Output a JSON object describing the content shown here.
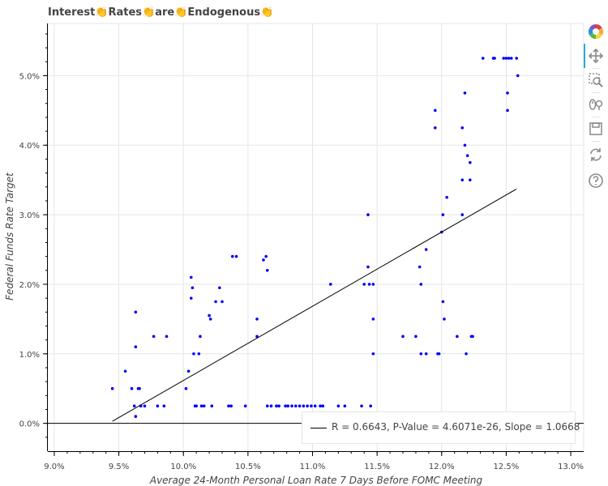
{
  "title": "Interest👏Rates👏are👏Endogenous👏",
  "toolbar": {
    "tools": [
      {
        "name": "bokeh-logo-icon"
      },
      {
        "name": "pan-tool-icon"
      },
      {
        "name": "box-zoom-tool-icon"
      },
      {
        "name": "wheel-zoom-tool-icon"
      },
      {
        "name": "save-tool-icon"
      },
      {
        "name": "reset-tool-icon"
      },
      {
        "name": "help-tool-icon"
      }
    ],
    "accent": "#26aae1"
  },
  "chart_data": {
    "type": "scatter",
    "xlabel": "Average 24-Month Personal Loan Rate 7 Days Before FOMC Meeting",
    "ylabel": "Federal Funds Rate Target",
    "xlim": [
      8.95,
      13.1
    ],
    "ylim": [
      -0.4,
      5.75
    ],
    "x_ticks": [
      "9.0%",
      "9.5%",
      "10.0%",
      "10.5%",
      "11.0%",
      "11.5%",
      "12.0%",
      "12.5%",
      "13.0%"
    ],
    "x_tick_values": [
      9.0,
      9.5,
      10.0,
      10.5,
      11.0,
      11.5,
      12.0,
      12.5,
      13.0
    ],
    "y_ticks": [
      "0.0%",
      "1.0%",
      "2.0%",
      "3.0%",
      "4.0%",
      "5.0%"
    ],
    "y_tick_values": [
      0,
      1,
      2,
      3,
      4,
      5
    ],
    "point_color": "#0000ff",
    "points": [
      [
        9.45,
        0.5
      ],
      [
        9.55,
        0.75
      ],
      [
        9.6,
        0.5
      ],
      [
        9.63,
        1.6
      ],
      [
        9.63,
        1.1
      ],
      [
        9.63,
        0.1
      ],
      [
        9.62,
        0.25
      ],
      [
        9.65,
        0.5
      ],
      [
        9.66,
        0.5
      ],
      [
        9.67,
        0.25
      ],
      [
        9.7,
        0.25
      ],
      [
        9.77,
        1.25
      ],
      [
        9.8,
        0.25
      ],
      [
        9.85,
        0.25
      ],
      [
        9.87,
        1.25
      ],
      [
        10.02,
        0.5
      ],
      [
        10.04,
        0.75
      ],
      [
        10.06,
        1.8
      ],
      [
        10.06,
        2.1
      ],
      [
        10.07,
        1.95
      ],
      [
        10.08,
        1.0
      ],
      [
        10.09,
        0.25
      ],
      [
        10.1,
        0.25
      ],
      [
        10.12,
        1.0
      ],
      [
        10.13,
        1.25
      ],
      [
        10.14,
        0.25
      ],
      [
        10.16,
        0.25
      ],
      [
        10.2,
        1.55
      ],
      [
        10.21,
        1.5
      ],
      [
        10.22,
        0.25
      ],
      [
        10.25,
        1.75
      ],
      [
        10.28,
        1.95
      ],
      [
        10.3,
        1.75
      ],
      [
        10.35,
        0.25
      ],
      [
        10.37,
        0.25
      ],
      [
        10.38,
        2.4
      ],
      [
        10.41,
        2.4
      ],
      [
        10.48,
        0.25
      ],
      [
        10.57,
        1.5
      ],
      [
        10.57,
        1.25
      ],
      [
        10.62,
        2.35
      ],
      [
        10.64,
        2.4
      ],
      [
        10.65,
        2.2
      ],
      [
        10.65,
        0.25
      ],
      [
        10.68,
        0.25
      ],
      [
        10.72,
        0.25
      ],
      [
        10.74,
        0.25
      ],
      [
        10.79,
        0.25
      ],
      [
        10.81,
        0.25
      ],
      [
        10.84,
        0.25
      ],
      [
        10.87,
        0.25
      ],
      [
        10.9,
        0.25
      ],
      [
        10.93,
        0.25
      ],
      [
        10.96,
        0.25
      ],
      [
        10.99,
        0.25
      ],
      [
        11.02,
        0.25
      ],
      [
        11.06,
        0.25
      ],
      [
        11.08,
        0.25
      ],
      [
        11.14,
        2.0
      ],
      [
        11.2,
        0.25
      ],
      [
        11.25,
        0.25
      ],
      [
        11.38,
        0.25
      ],
      [
        11.4,
        2.0
      ],
      [
        11.43,
        3.0
      ],
      [
        11.43,
        2.25
      ],
      [
        11.44,
        2.0
      ],
      [
        11.45,
        0.25
      ],
      [
        11.47,
        2.0
      ],
      [
        11.47,
        1.5
      ],
      [
        11.47,
        1.0
      ],
      [
        11.7,
        1.25
      ],
      [
        11.8,
        1.25
      ],
      [
        11.83,
        2.25
      ],
      [
        11.84,
        2.0
      ],
      [
        11.84,
        1.0
      ],
      [
        11.88,
        2.5
      ],
      [
        11.88,
        1.0
      ],
      [
        11.95,
        4.5
      ],
      [
        11.95,
        4.25
      ],
      [
        11.97,
        1.0
      ],
      [
        11.98,
        1.0
      ],
      [
        12.0,
        2.75
      ],
      [
        12.01,
        3.0
      ],
      [
        12.01,
        1.75
      ],
      [
        12.02,
        1.5
      ],
      [
        12.04,
        3.25
      ],
      [
        12.12,
        1.25
      ],
      [
        12.16,
        4.25
      ],
      [
        12.16,
        3.5
      ],
      [
        12.16,
        3.0
      ],
      [
        12.18,
        4.75
      ],
      [
        12.18,
        4.0
      ],
      [
        12.19,
        1.0
      ],
      [
        12.2,
        3.85
      ],
      [
        12.22,
        3.75
      ],
      [
        12.22,
        3.5
      ],
      [
        12.23,
        1.25
      ],
      [
        12.24,
        1.25
      ],
      [
        12.32,
        5.25
      ],
      [
        12.4,
        5.25
      ],
      [
        12.41,
        5.25
      ],
      [
        12.48,
        5.25
      ],
      [
        12.5,
        5.25
      ],
      [
        12.51,
        4.75
      ],
      [
        12.51,
        4.5
      ],
      [
        12.52,
        5.25
      ],
      [
        12.54,
        5.25
      ],
      [
        12.58,
        5.25
      ],
      [
        12.59,
        5.0
      ]
    ],
    "fit_line": {
      "x": [
        9.45,
        12.58
      ],
      "y": [
        0.03,
        3.37
      ],
      "color": "#000000"
    },
    "zero_line": {
      "y": 0.0,
      "color": "#000000"
    },
    "legend": {
      "label": "R = 0.6643, P-Value = 4.6071e-26, Slope = 1.0668",
      "placement": "bottom-right"
    },
    "grid": true
  }
}
